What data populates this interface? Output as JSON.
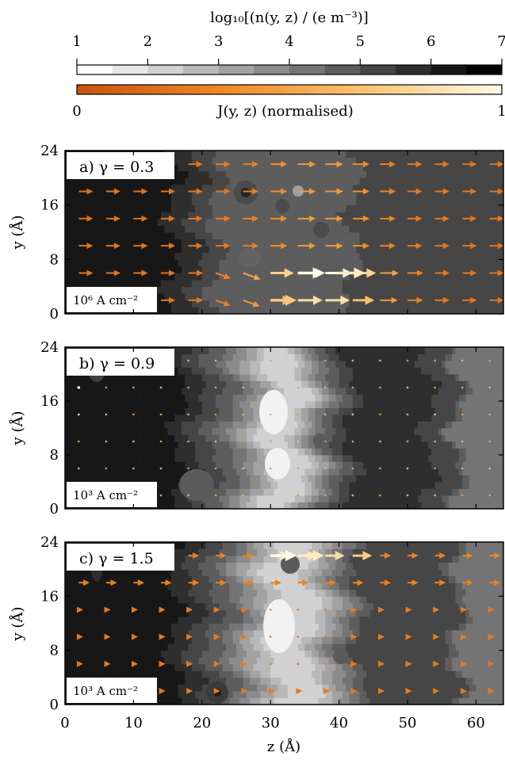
{
  "colorbars": {
    "density": {
      "label": "log₁₀[(n(y, z) / (e m⁻³)]",
      "ticks": [
        "1",
        "2",
        "3",
        "4",
        "5",
        "6",
        "7"
      ],
      "range": [
        1,
        7
      ],
      "levels": 12,
      "colormap": "greys"
    },
    "current": {
      "label": "J(y, z) (normalised)",
      "ticks": [
        "0",
        "1"
      ],
      "range": [
        0,
        1
      ],
      "colormap": "orange-to-pale-yellow"
    }
  },
  "panels": [
    {
      "label": "a) γ = 0.3",
      "scale_label": "10⁶ A cm⁻²"
    },
    {
      "label": "b) γ = 0.9",
      "scale_label": "10³ A cm⁻²"
    },
    {
      "label": "c) γ = 1.5",
      "scale_label": "10³ A cm⁻²"
    }
  ],
  "axes": {
    "xlabel": "z (Å)",
    "ylabel": "y (Å)",
    "xticks": [
      "0",
      "10",
      "20",
      "30",
      "40",
      "50",
      "60"
    ],
    "yticks": [
      "0",
      "8",
      "16",
      "24"
    ]
  },
  "chart_data": [
    {
      "type": "heatmap",
      "title": "",
      "xlabel": "z (Å)",
      "ylabel": "y (Å)",
      "xlim": [
        0,
        64
      ],
      "ylim": [
        0,
        24
      ],
      "grid": false,
      "field": "log10 electron density with current-density arrows",
      "density_profile": {
        "z": [
          0,
          10,
          14,
          18,
          22,
          26,
          30,
          34,
          38,
          42,
          46,
          50,
          54,
          58,
          62,
          64
        ],
        "log10_n": [
          6.3,
          6.3,
          6.2,
          5.7,
          5.0,
          4.7,
          4.6,
          4.6,
          4.7,
          5.0,
          5.3,
          5.4,
          5.4,
          5.3,
          5.2,
          5.2
        ]
      },
      "current_maxima": [
        {
          "z": 34,
          "y": 6,
          "J": 1.0
        },
        {
          "z": 40,
          "y": 6,
          "J": 0.9
        },
        {
          "z": 30,
          "y": 2,
          "J": 0.7
        }
      ]
    },
    {
      "type": "heatmap",
      "title": "",
      "xlabel": "z (Å)",
      "ylabel": "y (Å)",
      "xlim": [
        0,
        64
      ],
      "ylim": [
        0,
        24
      ],
      "grid": false,
      "field": "log10 electron density with current-density arrows",
      "density_profile": {
        "z": [
          0,
          10,
          16,
          20,
          24,
          28,
          31,
          34,
          38,
          42,
          50,
          56,
          58,
          64
        ],
        "log10_n": [
          6.2,
          6.2,
          6.1,
          5.3,
          4.5,
          3.2,
          2.0,
          2.4,
          4.4,
          5.6,
          5.6,
          5.4,
          4.2,
          4.2
        ]
      },
      "current_maxima": [
        {
          "z": 2,
          "y": 18,
          "J": 1.0
        }
      ]
    },
    {
      "type": "heatmap",
      "title": "",
      "xlabel": "z (Å)",
      "ylabel": "y (Å)",
      "xlim": [
        0,
        64
      ],
      "ylim": [
        0,
        24
      ],
      "grid": false,
      "field": "log10 electron density with current-density arrows",
      "density_profile": {
        "z": [
          0,
          12,
          16,
          20,
          24,
          28,
          32,
          36,
          40,
          44,
          50,
          56,
          58,
          64
        ],
        "log10_n": [
          6.2,
          6.2,
          6.0,
          5.3,
          4.5,
          3.2,
          2.1,
          2.5,
          4.0,
          5.4,
          5.5,
          5.4,
          4.4,
          4.4
        ]
      },
      "current_maxima": [
        {
          "z": 30,
          "y": 22,
          "J": 1.0
        },
        {
          "z": 34,
          "y": 22,
          "J": 0.9
        }
      ]
    }
  ]
}
